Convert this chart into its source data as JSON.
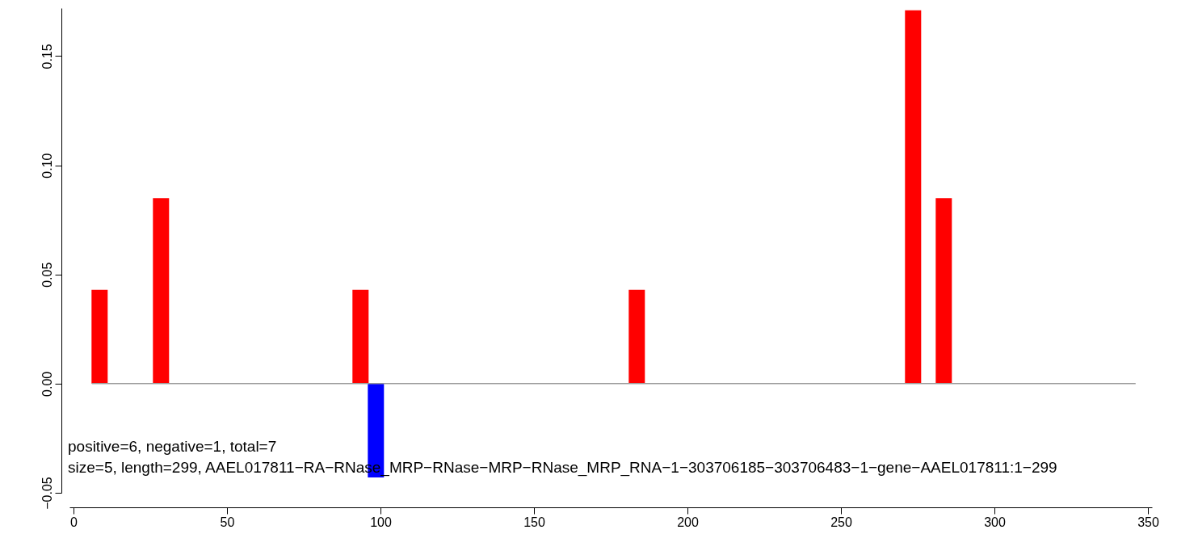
{
  "chart_data": {
    "type": "bar",
    "series": [
      {
        "color": "#ff0000",
        "x": [
          8.5,
          28.5,
          93.5,
          183.5,
          273.5,
          283.5
        ],
        "values": [
          0.043,
          0.085,
          0.043,
          0.043,
          0.171,
          0.085
        ]
      },
      {
        "color": "#0000ff",
        "x": [
          98.5
        ],
        "values": [
          -0.043
        ]
      }
    ],
    "xlim": [
      0,
      350
    ],
    "xticks": [
      0,
      50,
      100,
      150,
      200,
      250,
      300,
      350
    ],
    "ylim": [
      -0.05,
      0.172
    ],
    "yticks": [
      {
        "value": -0.05,
        "label": "−0.05"
      },
      {
        "value": 0,
        "label": "0.00"
      },
      {
        "value": 0.05,
        "label": "0.05"
      },
      {
        "value": 0.1,
        "label": "0.10"
      },
      {
        "value": 0.15,
        "label": "0.15"
      }
    ],
    "ref_lines": [
      {
        "axis": "y",
        "value": 0,
        "color": "#999999"
      }
    ],
    "annotations": [
      "size=5, length=299, AAEL017811−RA−RNase_MRP−RNase−MRP−RNase_MRP_RNA−1−303706185−303706483−1−gene−AAEL017811:1−299",
      "positive=6, negative=1, total=7"
    ],
    "grid": false
  }
}
